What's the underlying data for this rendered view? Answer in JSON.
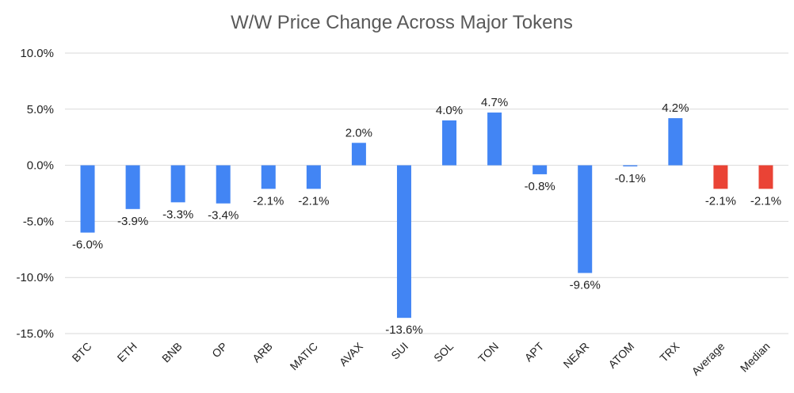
{
  "chart_data": {
    "type": "bar",
    "title": "W/W Price Change Across Major Tokens",
    "xlabel": "",
    "ylabel": "",
    "ylim": [
      -15,
      10
    ],
    "yticks": [
      10,
      5,
      0,
      -5,
      -10,
      -15
    ],
    "ytick_labels": [
      "10.0%",
      "5.0%",
      "0.0%",
      "-5.0%",
      "-10.0%",
      "-15.0%"
    ],
    "grid": true,
    "legend": "none",
    "categories": [
      "BTC",
      "ETH",
      "BNB",
      "OP",
      "ARB",
      "MATIC",
      "AVAX",
      "SUI",
      "SOL",
      "TON",
      "APT",
      "NEAR",
      "ATOM",
      "TRX",
      "Average",
      "Median"
    ],
    "values": [
      -6.0,
      -3.9,
      -3.3,
      -3.4,
      -2.1,
      -2.1,
      2.0,
      -13.6,
      4.0,
      4.7,
      -0.8,
      -9.6,
      -0.1,
      4.2,
      -2.1,
      -2.1
    ],
    "data_labels": [
      "-6.0%",
      "-3.9%",
      "-3.3%",
      "-3.4%",
      "-2.1%",
      "-2.1%",
      "2.0%",
      "-13.6%",
      "4.0%",
      "4.7%",
      "-0.8%",
      "-9.6%",
      "-0.1%",
      "4.2%",
      "-2.1%",
      "-2.1%"
    ],
    "colors": {
      "token": "#4285f4",
      "summary": "#ea4335",
      "gridline": "#d9d9d9",
      "text": "#222222",
      "title": "#595959"
    },
    "summary_categories": [
      "Average",
      "Median"
    ]
  }
}
